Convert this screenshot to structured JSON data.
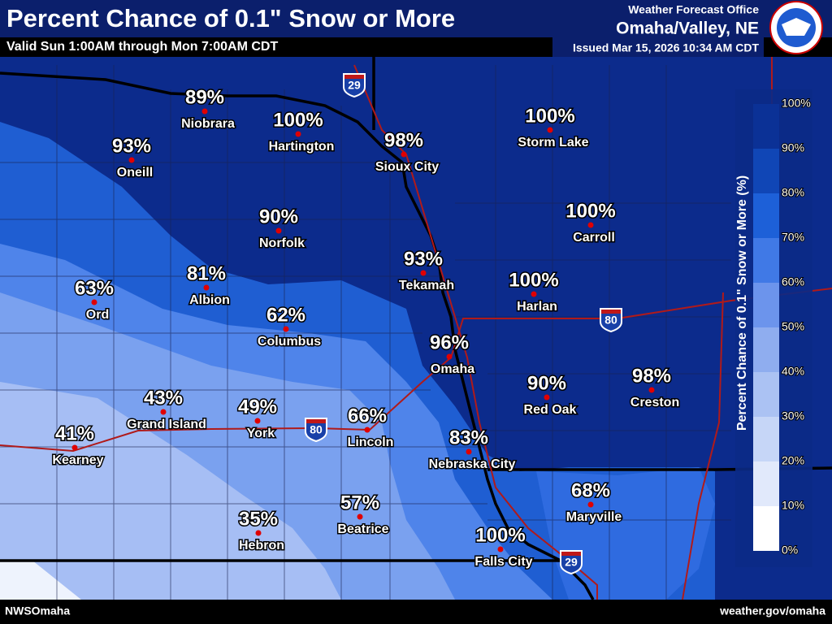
{
  "header": {
    "title": "Percent Chance of 0.1\" Snow or More",
    "subtitle": "Valid Sun 1:00AM through Mon 7:00AM CDT",
    "office": "Weather Forecast Office",
    "office_location": "Omaha/Valley, NE",
    "issued": "Issued Mar 15, 2026 10:34 AM CDT"
  },
  "cities": [
    {
      "name": "Niobrara",
      "value": "89%"
    },
    {
      "name": "Hartington",
      "value": "100%"
    },
    {
      "name": "Oneill",
      "value": "93%"
    },
    {
      "name": "Sioux City",
      "value": "98%"
    },
    {
      "name": "Storm Lake",
      "value": "100%"
    },
    {
      "name": "Norfolk",
      "value": "90%"
    },
    {
      "name": "Carroll",
      "value": "100%"
    },
    {
      "name": "Tekamah",
      "value": "93%"
    },
    {
      "name": "Harlan",
      "value": "100%"
    },
    {
      "name": "Ord",
      "value": "63%"
    },
    {
      "name": "Albion",
      "value": "81%"
    },
    {
      "name": "Columbus",
      "value": "62%"
    },
    {
      "name": "Omaha",
      "value": "96%"
    },
    {
      "name": "Red Oak",
      "value": "90%"
    },
    {
      "name": "Creston",
      "value": "98%"
    },
    {
      "name": "Grand Island",
      "value": "43%"
    },
    {
      "name": "York",
      "value": "49%"
    },
    {
      "name": "Lincoln",
      "value": "66%"
    },
    {
      "name": "Kearney",
      "value": "41%"
    },
    {
      "name": "Nebraska City",
      "value": "83%"
    },
    {
      "name": "Maryville",
      "value": "68%"
    },
    {
      "name": "Beatrice",
      "value": "57%"
    },
    {
      "name": "Hebron",
      "value": "35%"
    },
    {
      "name": "Falls City",
      "value": "100%"
    }
  ],
  "shields": [
    "29",
    "80",
    "80",
    "29"
  ],
  "legend": {
    "title": "Percent Chance of 0.1\" Snow or More (%)",
    "labels": [
      "0%",
      "10%",
      "20%",
      "30%",
      "40%",
      "50%",
      "60%",
      "70%",
      "80%",
      "90%",
      "100%"
    ]
  },
  "footer": {
    "left": "NWSOmaha",
    "right": "weather.gov/omaha"
  }
}
